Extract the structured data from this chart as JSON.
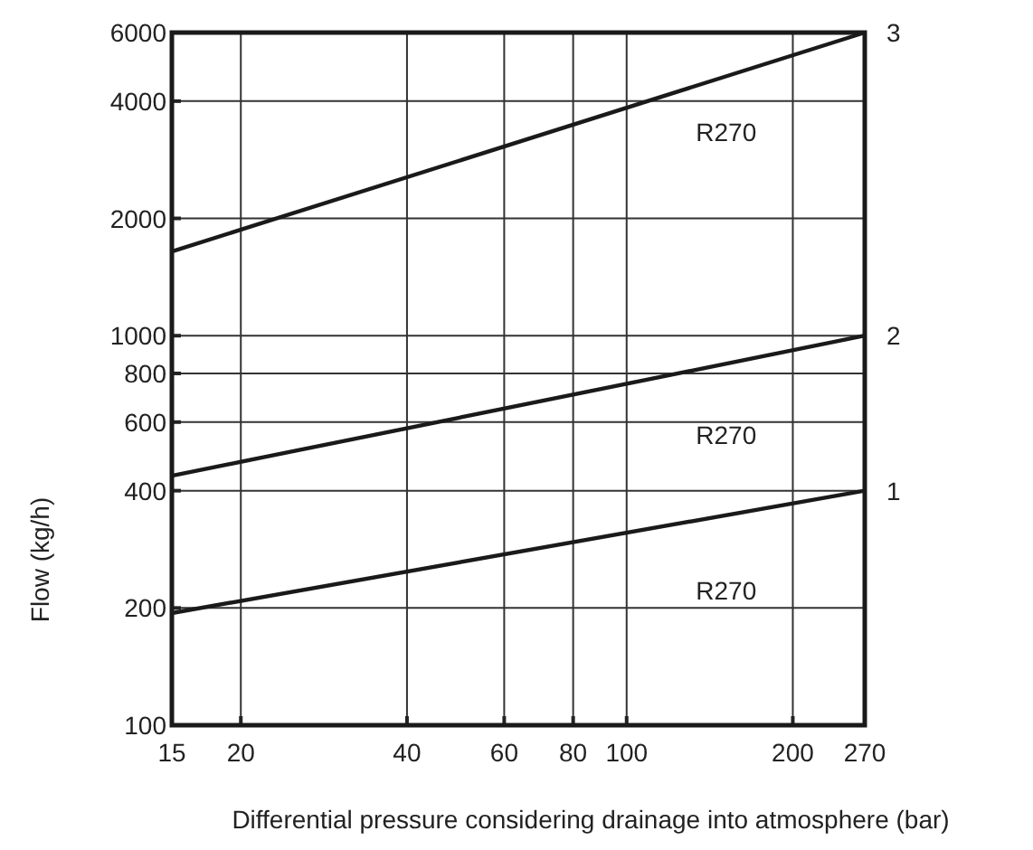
{
  "chart_data": {
    "type": "line",
    "xlabel": "Differential pressure considering drainage into atmosphere (bar)",
    "ylabel": "Flow (kg/h)",
    "log": "xy",
    "grid": true,
    "marker": "none",
    "line_style": "solid",
    "x": [
      15,
      270
    ],
    "series": [
      {
        "name": "1",
        "color": "#1a1a1a",
        "values": [
          194,
          400
        ]
      },
      {
        "name": "2",
        "color": "#1a1a1a",
        "values": [
          437,
          1000
        ]
      },
      {
        "name": "3",
        "color": "#1a1a1a",
        "values": [
          1645,
          6000
        ]
      }
    ],
    "xlim": [
      15,
      270
    ],
    "xticks": [
      15,
      20,
      40,
      60,
      80,
      100,
      200,
      270
    ],
    "ylim": [
      100,
      6000
    ],
    "yticks": [
      100,
      200,
      400,
      600,
      800,
      1000,
      2000,
      4000,
      6000
    ],
    "annotations": [
      "R270",
      "R270",
      "R270"
    ]
  }
}
